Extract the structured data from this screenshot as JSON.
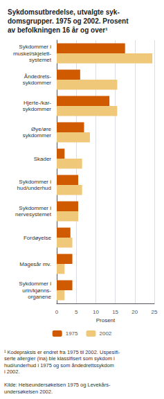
{
  "chart_data": {
    "type": "bar",
    "title": "Sykdomsutbredelse, utvalgte syk-\ndomsgrupper. 1975 og 2002. Prosent\nav befolkningen 16 år og over¹",
    "categories": [
      "Sykdommer i\nmuskel/skjelett-\nsystemet",
      "Åndedrets-\nsykdommer",
      "Hjerte-/kar-\nsykdommer",
      "Øye/øre\nsykdommer",
      "Skader",
      "Sykdommer i\nhud/underhud",
      "Sykdommer i\nnervesystemet",
      "Fordøyelse",
      "Magesår mv.",
      "Sykdommer i\nurin/kjønns-\norganene"
    ],
    "series": [
      {
        "name": "1975",
        "color": "#d05a00",
        "values": [
          17.5,
          6.0,
          13.5,
          7.0,
          2.0,
          5.5,
          5.5,
          3.5,
          4.0,
          4.0
        ]
      },
      {
        "name": "2002",
        "color": "#f0c87a",
        "values": [
          24.5,
          15.5,
          15.5,
          8.5,
          6.5,
          6.5,
          5.5,
          4.0,
          2.0,
          2.0
        ]
      }
    ],
    "xlabel": "Prosent",
    "xlim": [
      0,
      25
    ],
    "xticks": [
      0,
      5,
      10,
      15,
      20,
      25
    ],
    "orientation": "horizontal",
    "grid": true,
    "legend": "bottom",
    "annotations": [
      "¹ Kodepraksis er endret fra 1975 til 2002. Uspesifi-\nserte allergier (ina) ble klassifisert som sykdom i\nhud/underhud i 1975 og som åndedrettssykdom\ni 2002.",
      "Kilde: Helseundersøkelsen 1975 og Levekårs-\nundersøkelsen 2002."
    ]
  }
}
